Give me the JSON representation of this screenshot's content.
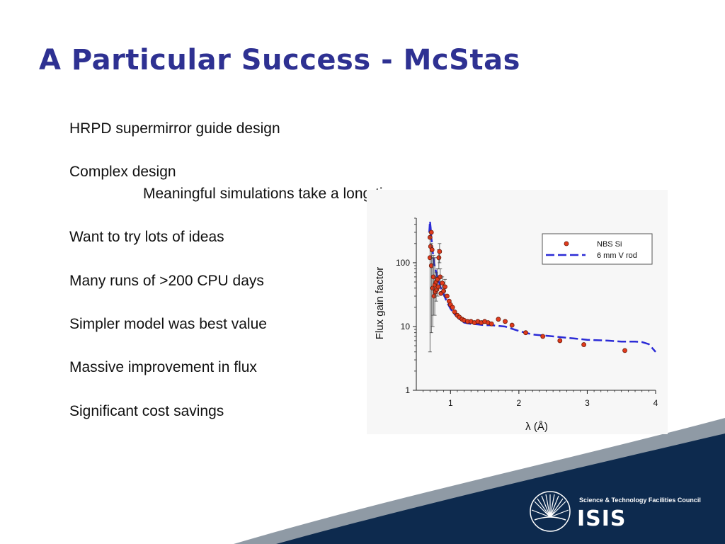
{
  "slide": {
    "title": "A Particular Success - McStas",
    "bullets": [
      "HRPD supermirror guide design",
      "Complex design",
      "Meaningful simulations take a long time",
      "Want to try lots of ideas",
      "Many runs of >200 CPU days",
      "Simpler model was best value",
      "Massive improvement in flux",
      "Significant cost savings"
    ]
  },
  "logo": {
    "council": "Science & Technology Facilities Council",
    "name": "ISIS",
    "icon": "starburst-icon"
  },
  "colors": {
    "title": "#2e3192",
    "footer_navy": "#0d2a4e",
    "footer_swoosh": "#8f9aa5",
    "marker_fill": "#e03a1c",
    "model_line": "#2b2bd6"
  },
  "chart_data": {
    "type": "scatter",
    "xlabel": "λ (Å)",
    "ylabel": "Flux gain factor",
    "xlim": [
      0.5,
      4
    ],
    "ylim": [
      1,
      500
    ],
    "yscale": "log",
    "xticks": [
      "1",
      "2",
      "3",
      "4"
    ],
    "yticks": [
      "1",
      "10",
      "100"
    ],
    "grid": false,
    "legend_position": "top-right",
    "series": [
      {
        "name": "NBS Si",
        "kind": "points",
        "x": [
          0.7,
          0.7,
          0.71,
          0.72,
          0.72,
          0.73,
          0.74,
          0.75,
          0.76,
          0.77,
          0.78,
          0.79,
          0.8,
          0.81,
          0.82,
          0.83,
          0.84,
          0.85,
          0.86,
          0.88,
          0.9,
          0.92,
          0.95,
          0.98,
          1.0,
          1.03,
          1.06,
          1.1,
          1.13,
          1.17,
          1.2,
          1.25,
          1.3,
          1.35,
          1.4,
          1.45,
          1.5,
          1.55,
          1.6,
          1.7,
          1.8,
          1.9,
          2.1,
          2.35,
          2.6,
          2.95,
          3.55
        ],
        "y": [
          250,
          120,
          180,
          300,
          90,
          160,
          40,
          60,
          30,
          45,
          35,
          50,
          38,
          55,
          42,
          120,
          150,
          60,
          33,
          48,
          36,
          42,
          30,
          25,
          22,
          20,
          17,
          15,
          14,
          13,
          12.5,
          12,
          12,
          11.5,
          12,
          11.5,
          12,
          11.5,
          11,
          13,
          12,
          10.5,
          8,
          7,
          6,
          5.2,
          4.2
        ],
        "y_low": [
          null,
          4,
          null,
          null,
          8,
          null,
          10,
          15,
          null,
          15,
          null,
          25,
          null,
          30,
          null,
          80,
          100,
          40,
          null,
          35,
          null,
          30,
          null,
          null,
          null,
          null,
          null,
          null,
          null,
          null,
          null,
          null,
          null,
          null,
          null,
          null,
          null,
          null,
          null,
          null,
          null,
          null,
          null,
          null,
          null,
          null,
          null
        ],
        "y_high": [
          null,
          300,
          null,
          null,
          200,
          null,
          120,
          130,
          null,
          120,
          null,
          70,
          null,
          80,
          null,
          160,
          200,
          80,
          null,
          60,
          null,
          55,
          null,
          null,
          null,
          null,
          null,
          null,
          null,
          null,
          null,
          null,
          null,
          null,
          null,
          null,
          null,
          null,
          null,
          null,
          null,
          null,
          null,
          null,
          null,
          null,
          null
        ]
      },
      {
        "name": "6 mm V rod",
        "kind": "dashed-line",
        "x": [
          0.69,
          0.7,
          0.71,
          0.72,
          0.73,
          0.74,
          0.75,
          0.76,
          0.78,
          0.8,
          0.83,
          0.86,
          0.9,
          0.95,
          1.0,
          1.05,
          1.1,
          1.15,
          1.2,
          1.3,
          1.4,
          1.5,
          1.6,
          1.8,
          2.0,
          2.2,
          2.5,
          2.8,
          3.0,
          3.3,
          3.5,
          3.7,
          3.8,
          3.9,
          4.0
        ],
        "y": [
          300,
          450,
          350,
          250,
          200,
          150,
          120,
          100,
          80,
          65,
          50,
          40,
          32,
          24,
          19,
          16,
          14,
          12.5,
          11.5,
          11,
          10.8,
          10.5,
          10.5,
          10,
          8.5,
          7.5,
          7,
          6.5,
          6.2,
          6,
          5.8,
          5.8,
          5.7,
          5.3,
          4
        ]
      }
    ]
  }
}
